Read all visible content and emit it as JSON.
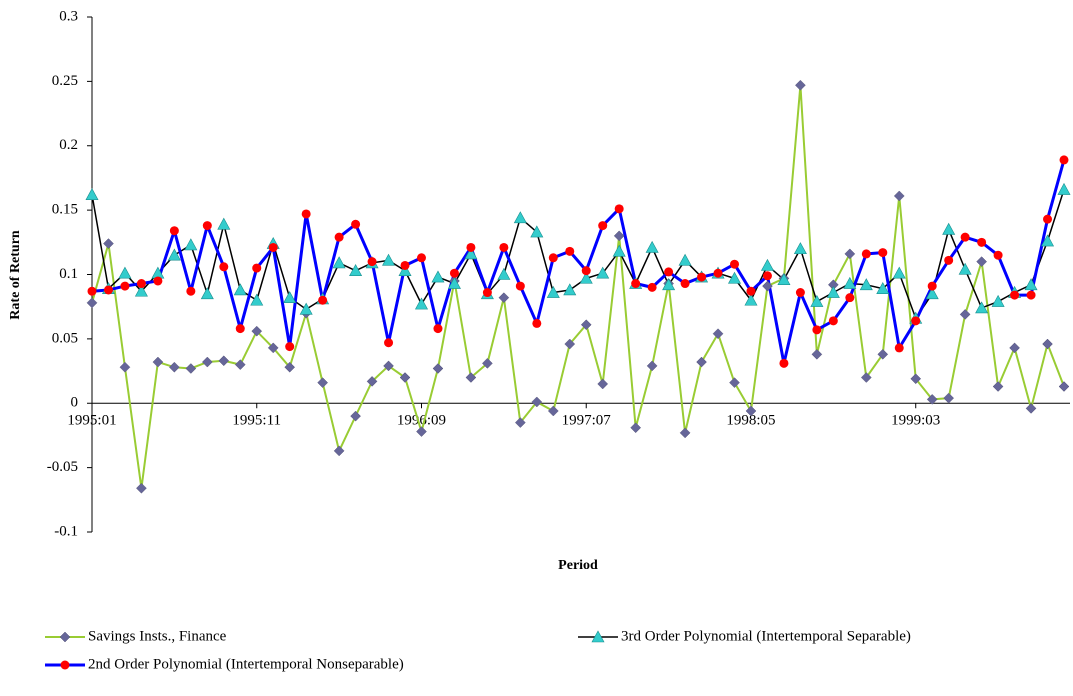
{
  "chart_data": {
    "type": "line",
    "y_label": "Rate of Return",
    "x_label": "Period",
    "categories": [
      "1995:01",
      null,
      null,
      null,
      null,
      null,
      null,
      null,
      null,
      null,
      "1995:11",
      null,
      null,
      null,
      null,
      null,
      null,
      null,
      null,
      null,
      "1996:09",
      null,
      null,
      null,
      null,
      null,
      null,
      null,
      null,
      null,
      "1997:07",
      null,
      null,
      null,
      null,
      null,
      null,
      null,
      null,
      null,
      "1998:05",
      null,
      null,
      null,
      null,
      null,
      null,
      null,
      null,
      null,
      "1999:03",
      null,
      null,
      null,
      null,
      null,
      null,
      null,
      null,
      null
    ],
    "ylim": [
      -0.1,
      0.3
    ],
    "yticks": [
      -0.1,
      -0.05,
      0,
      0.05,
      0.1,
      0.15,
      0.2,
      0.25,
      0.3
    ],
    "grid": false,
    "series": [
      {
        "name": "Savings Insts., Finance",
        "color": "#99cc33",
        "marker": "diamond",
        "marker_color": "#666699",
        "line_width": 2,
        "values": [
          0.078,
          0.124,
          0.028,
          -0.066,
          0.032,
          0.028,
          0.027,
          0.032,
          0.033,
          0.03,
          0.056,
          0.043,
          0.028,
          0.07,
          0.016,
          -0.037,
          -0.01,
          0.017,
          0.029,
          0.02,
          -0.022,
          0.027,
          0.095,
          0.02,
          0.031,
          0.082,
          -0.015,
          0.001,
          -0.006,
          0.046,
          0.061,
          0.015,
          0.13,
          -0.019,
          0.029,
          0.093,
          -0.023,
          0.032,
          0.054,
          0.016,
          -0.006,
          0.091,
          0.097,
          0.247,
          0.038,
          0.092,
          0.116,
          0.02,
          0.038,
          0.161,
          0.019,
          0.003,
          0.004,
          0.069,
          0.11,
          0.013,
          0.043,
          -0.004,
          0.046,
          0.013
        ]
      },
      {
        "name": "3rd Order Polynomial (Intertemporal Separable)",
        "color": "#000000",
        "marker": "triangle",
        "marker_color": "#33cccc",
        "line_width": 1.5,
        "values": [
          0.162,
          0.089,
          0.101,
          0.087,
          0.101,
          0.115,
          0.123,
          0.085,
          0.139,
          0.088,
          0.08,
          0.124,
          0.082,
          0.073,
          0.081,
          0.109,
          0.103,
          0.109,
          0.111,
          0.103,
          0.077,
          0.098,
          0.093,
          0.116,
          0.085,
          0.1,
          0.144,
          0.133,
          0.086,
          0.088,
          0.097,
          0.101,
          0.118,
          0.093,
          0.121,
          0.092,
          0.111,
          0.098,
          0.101,
          0.097,
          0.08,
          0.107,
          0.096,
          0.12,
          0.079,
          0.086,
          0.093,
          0.092,
          0.089,
          0.101,
          0.066,
          0.085,
          0.135,
          0.104,
          0.074,
          0.079,
          0.086,
          0.092,
          0.126,
          0.166
        ]
      },
      {
        "name": "2nd Order Polynomial (Intertemporal Nonseparable)",
        "color": "#0000ff",
        "marker": "circle",
        "marker_color": "#ff0000",
        "line_width": 3,
        "values": [
          0.087,
          0.088,
          0.091,
          0.093,
          0.095,
          0.134,
          0.087,
          0.138,
          0.106,
          0.058,
          0.105,
          0.121,
          0.044,
          0.147,
          0.08,
          0.129,
          0.139,
          0.11,
          0.047,
          0.107,
          0.113,
          0.058,
          0.101,
          0.121,
          0.086,
          0.121,
          0.091,
          0.062,
          0.113,
          0.118,
          0.103,
          0.138,
          0.151,
          0.093,
          0.09,
          0.102,
          0.093,
          0.098,
          0.101,
          0.108,
          0.087,
          0.099,
          0.031,
          0.086,
          0.057,
          0.064,
          0.082,
          0.116,
          0.117,
          0.043,
          0.064,
          0.091,
          0.111,
          0.129,
          0.125,
          0.115,
          0.084,
          0.084,
          0.143,
          0.189
        ]
      }
    ]
  }
}
